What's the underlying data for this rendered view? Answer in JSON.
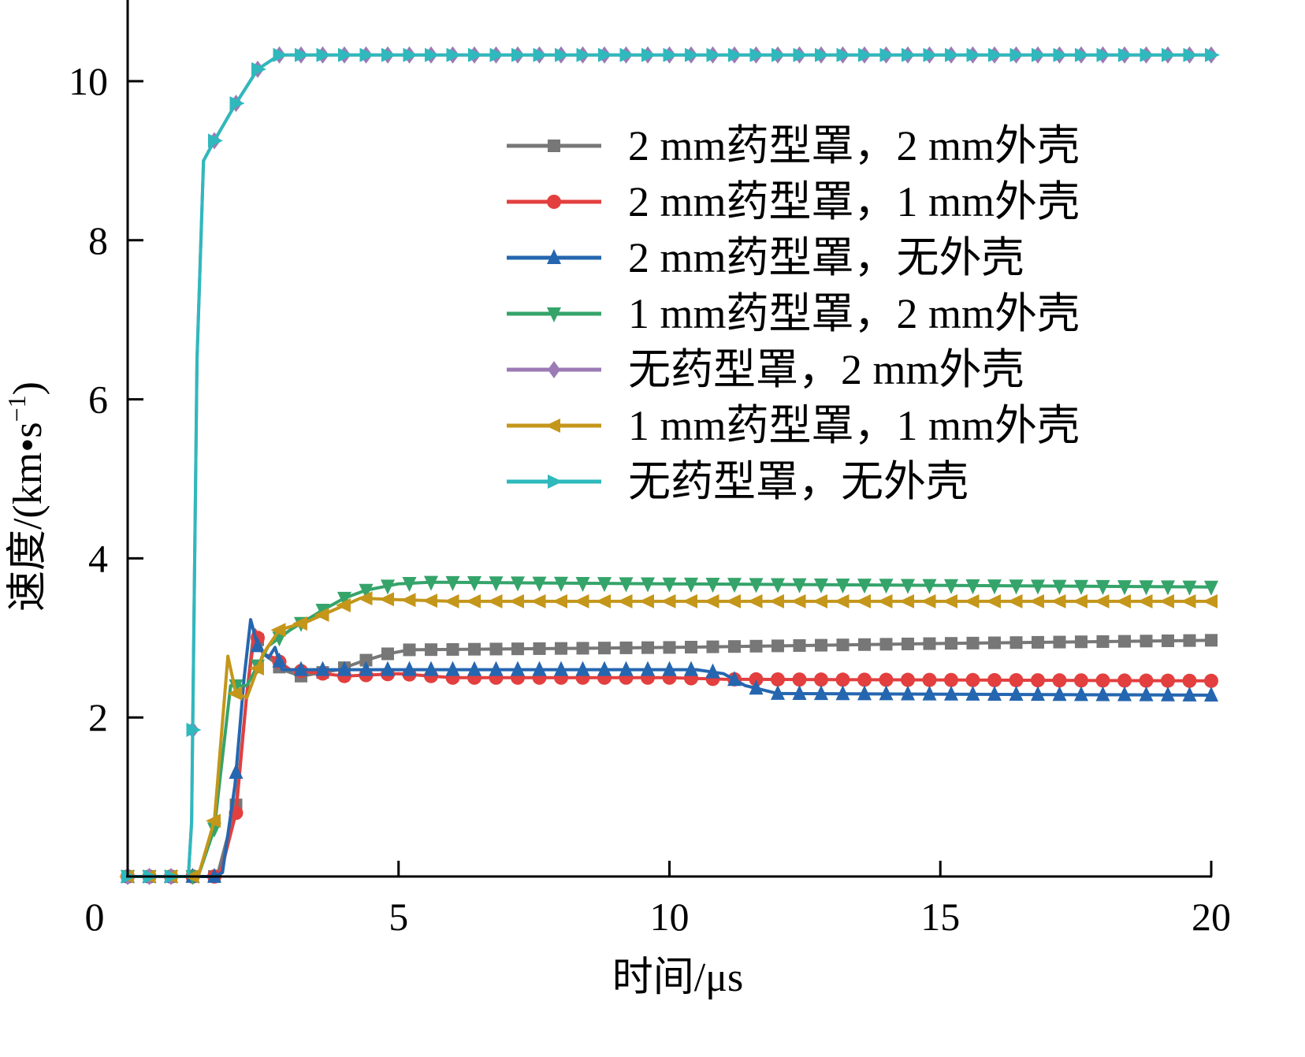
{
  "chart_data": {
    "type": "line",
    "title": "",
    "xlabel": "时间/μs",
    "ylabel_main": "速度/(km•s",
    "ylabel_sup": "−1",
    "ylabel_close": ")",
    "xlim": [
      0,
      20
    ],
    "ylim": [
      0,
      11
    ],
    "origin_label": "0",
    "xticks": [
      5,
      10,
      15,
      20
    ],
    "xtick_labels": [
      "5",
      "10",
      "15",
      "20"
    ],
    "yticks": [
      2,
      4,
      6,
      8,
      10
    ],
    "ytick_labels": [
      "2",
      "4",
      "6",
      "8",
      "10"
    ],
    "grid": false,
    "legend_position": "top-right",
    "marker_step": 0.4,
    "series": [
      {
        "name": "2 mm药型罩，2 mm外壳",
        "color": "#777777",
        "marker": "square",
        "points": [
          [
            0,
            0
          ],
          [
            1.65,
            0
          ],
          [
            2.0,
            0.9
          ],
          [
            2.2,
            2.3
          ],
          [
            2.33,
            3.1
          ],
          [
            2.5,
            2.8
          ],
          [
            2.7,
            2.7
          ],
          [
            2.85,
            2.6
          ],
          [
            3.2,
            2.52
          ],
          [
            3.9,
            2.6
          ],
          [
            4.3,
            2.7
          ],
          [
            4.8,
            2.8
          ],
          [
            5.2,
            2.85
          ],
          [
            10,
            2.88
          ],
          [
            15,
            2.93
          ],
          [
            20,
            2.97
          ]
        ]
      },
      {
        "name": "2 mm药型罩，1 mm外壳",
        "color": "#e33f3f",
        "marker": "circle",
        "points": [
          [
            0,
            0
          ],
          [
            1.7,
            0
          ],
          [
            2.0,
            0.8
          ],
          [
            2.2,
            2.3
          ],
          [
            2.35,
            3.1
          ],
          [
            2.5,
            2.8
          ],
          [
            2.7,
            2.75
          ],
          [
            3.0,
            2.6
          ],
          [
            4.0,
            2.52
          ],
          [
            5,
            2.55
          ],
          [
            6,
            2.5
          ],
          [
            10,
            2.5
          ],
          [
            11,
            2.48
          ],
          [
            20,
            2.46
          ]
        ]
      },
      {
        "name": "2 mm药型罩，无外壳",
        "color": "#2566b0",
        "marker": "triangle-up",
        "points": [
          [
            0,
            0
          ],
          [
            1.6,
            0
          ],
          [
            1.75,
            0.05
          ],
          [
            1.98,
            1.15
          ],
          [
            2.15,
            2.5
          ],
          [
            2.27,
            3.23
          ],
          [
            2.4,
            2.9
          ],
          [
            2.6,
            2.75
          ],
          [
            2.72,
            2.88
          ],
          [
            2.85,
            2.6
          ],
          [
            3.5,
            2.6
          ],
          [
            10.5,
            2.6
          ],
          [
            11,
            2.55
          ],
          [
            11.4,
            2.4
          ],
          [
            12,
            2.3
          ],
          [
            20,
            2.28
          ]
        ]
      },
      {
        "name": "1 mm药型罩，2 mm外壳",
        "color": "#35a46a",
        "marker": "triangle-down",
        "points": [
          [
            0,
            0
          ],
          [
            1.3,
            0
          ],
          [
            1.6,
            0.6
          ],
          [
            1.9,
            2.4
          ],
          [
            2.2,
            2.4
          ],
          [
            2.6,
            2.9
          ],
          [
            3.0,
            3.1
          ],
          [
            3.6,
            3.35
          ],
          [
            4.0,
            3.5
          ],
          [
            4.4,
            3.6
          ],
          [
            5.0,
            3.68
          ],
          [
            5.6,
            3.7
          ],
          [
            10,
            3.68
          ],
          [
            20,
            3.64
          ]
        ]
      },
      {
        "name": "无药型罩，2 mm外壳",
        "color": "#9b7ab5",
        "marker": "diamond",
        "points": [
          [
            0,
            0
          ],
          [
            1.12,
            0
          ],
          [
            1.18,
            0.68
          ],
          [
            1.28,
            6.5
          ],
          [
            1.4,
            9.0
          ],
          [
            1.59,
            9.24
          ],
          [
            1.98,
            9.7
          ],
          [
            2.4,
            10.15
          ],
          [
            2.8,
            10.33
          ],
          [
            20,
            10.33
          ]
        ]
      },
      {
        "name": "1 mm药型罩，1 mm外壳",
        "color": "#c4961a",
        "marker": "triangle-left",
        "points": [
          [
            0,
            0
          ],
          [
            1.3,
            0
          ],
          [
            1.6,
            0.7
          ],
          [
            1.85,
            2.77
          ],
          [
            2.0,
            2.3
          ],
          [
            2.2,
            2.25
          ],
          [
            2.5,
            2.8
          ],
          [
            2.8,
            3.1
          ],
          [
            3.3,
            3.2
          ],
          [
            3.8,
            3.35
          ],
          [
            4.3,
            3.5
          ],
          [
            5,
            3.48
          ],
          [
            6,
            3.46
          ],
          [
            20,
            3.46
          ]
        ]
      },
      {
        "name": "无药型罩，无外壳",
        "color": "#2fb9bd",
        "marker": "triangle-right",
        "points": [
          [
            0,
            0
          ],
          [
            1.12,
            0
          ],
          [
            1.18,
            0.68
          ],
          [
            1.28,
            6.5
          ],
          [
            1.4,
            9.0
          ],
          [
            1.59,
            9.24
          ],
          [
            1.98,
            9.7
          ],
          [
            2.4,
            10.15
          ],
          [
            2.8,
            10.33
          ],
          [
            20,
            10.33
          ]
        ]
      }
    ]
  }
}
